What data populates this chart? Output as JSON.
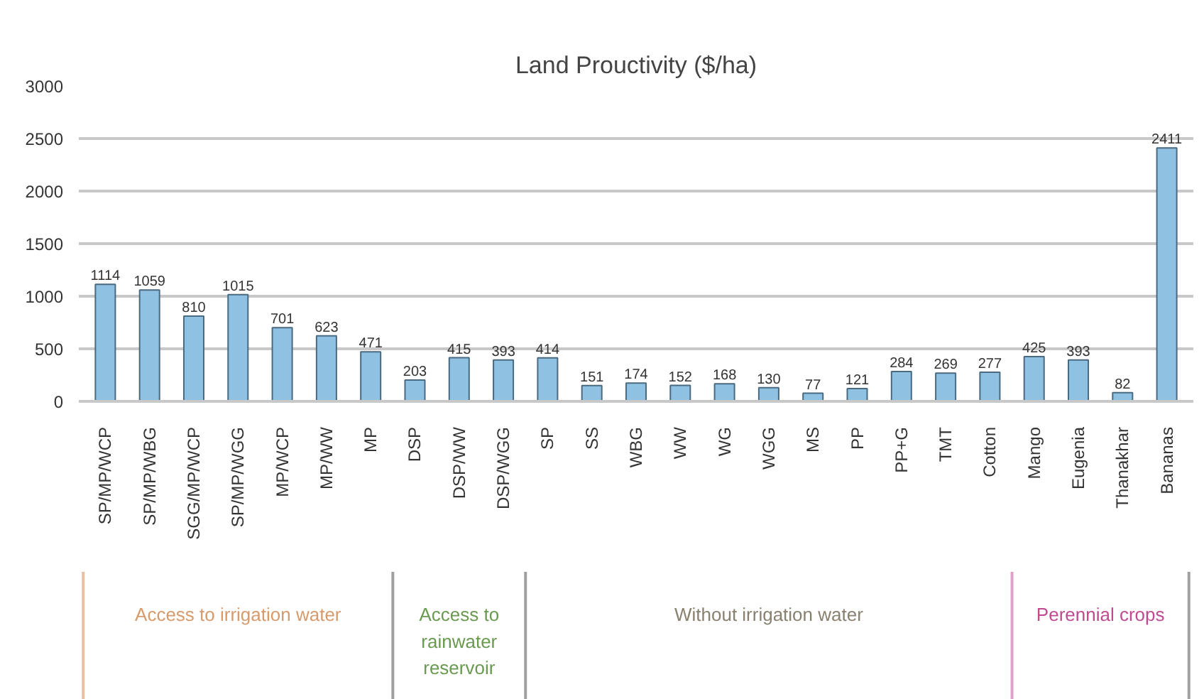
{
  "chart_data": {
    "type": "bar",
    "title": "Land Prouctivity ($/ha)",
    "categories": [
      "SP/MP/WCP",
      "SP/MP/WBG",
      "SGG/MP/WCP",
      "SP/MP/WGG",
      "MP/WCP",
      "MP/WW",
      "MP",
      "DSP",
      "DSP/WW",
      "DSP/WGG",
      "SP",
      "SS",
      "WBG",
      "WW",
      "WG",
      "WGG",
      "MS",
      "PP",
      "PP+G",
      "TMT",
      "Cotton",
      "Mango",
      "Eugenia",
      "Thanakhar",
      "Bananas"
    ],
    "values": [
      1114,
      1059,
      810,
      1015,
      701,
      623,
      471,
      203,
      415,
      393,
      414,
      151,
      174,
      152,
      168,
      130,
      77,
      121,
      284,
      269,
      277,
      425,
      393,
      82,
      2411
    ],
    "color": "#8fc1e3",
    "ylim": [
      0,
      3000
    ],
    "yticks": [
      0,
      500,
      1000,
      1500,
      2000,
      2500,
      3000
    ],
    "grid": "y",
    "data_labels": true,
    "annotations": [
      "Access to irrigation water",
      "Access to rainwater reservoir",
      "Without irrigation water",
      "Perennial crops"
    ]
  }
}
